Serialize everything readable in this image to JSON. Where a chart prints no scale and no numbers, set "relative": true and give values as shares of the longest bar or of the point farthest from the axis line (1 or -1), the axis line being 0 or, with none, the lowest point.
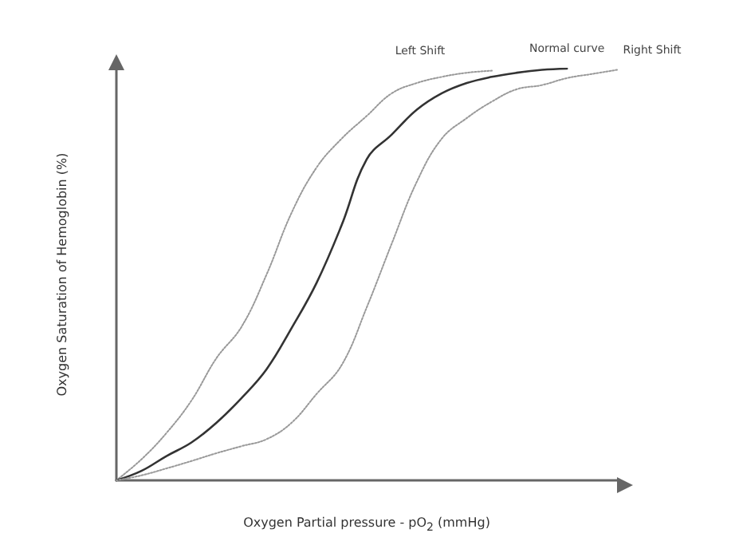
{
  "chart_data": {
    "type": "line",
    "relative": true,
    "xlabel": "Oxygen Partial pressure - pO$_{2}$ (mmHg)",
    "ylabel": "Oxygen Saturation of Hemoglobin (%)",
    "marker": "none",
    "categories": [
      null,
      null,
      null,
      null,
      null,
      null,
      null,
      null,
      null,
      null,
      null,
      null,
      null,
      null,
      null,
      null,
      null,
      null,
      null,
      null,
      null
    ],
    "series": [
      {
        "name": "Left Shift",
        "color": "#999999",
        "line_style": "dotted",
        "values": [
          0,
          0.051,
          0.115,
          0.194,
          0.297,
          0.373,
          0.5,
          0.65,
          0.76,
          0.83,
          0.885,
          0.94,
          0.965,
          0.98,
          0.99,
          0.995,
          null,
          null,
          null,
          null,
          null
        ]
      },
      {
        "name": "Normal curve",
        "color": "#333333",
        "line_style": "solid",
        "values": [
          0,
          0.023,
          0.059,
          0.092,
          0.14,
          0.2,
          0.27,
          0.37,
          0.48,
          0.62,
          0.78,
          0.84,
          0.9,
          0.94,
          0.965,
          0.98,
          0.99,
          0.997,
          1,
          null,
          null
        ]
      },
      {
        "name": "Right Shift",
        "color": "#999999",
        "line_style": "dotted",
        "values": [
          0,
          0.012,
          0.029,
          0.047,
          0.066,
          0.083,
          0.1,
          0.14,
          0.21,
          0.28,
          0.42,
          0.575,
          0.725,
          0.83,
          0.88,
          0.92,
          0.95,
          0.96,
          0.977,
          0.987,
          0.997
        ]
      }
    ]
  }
}
